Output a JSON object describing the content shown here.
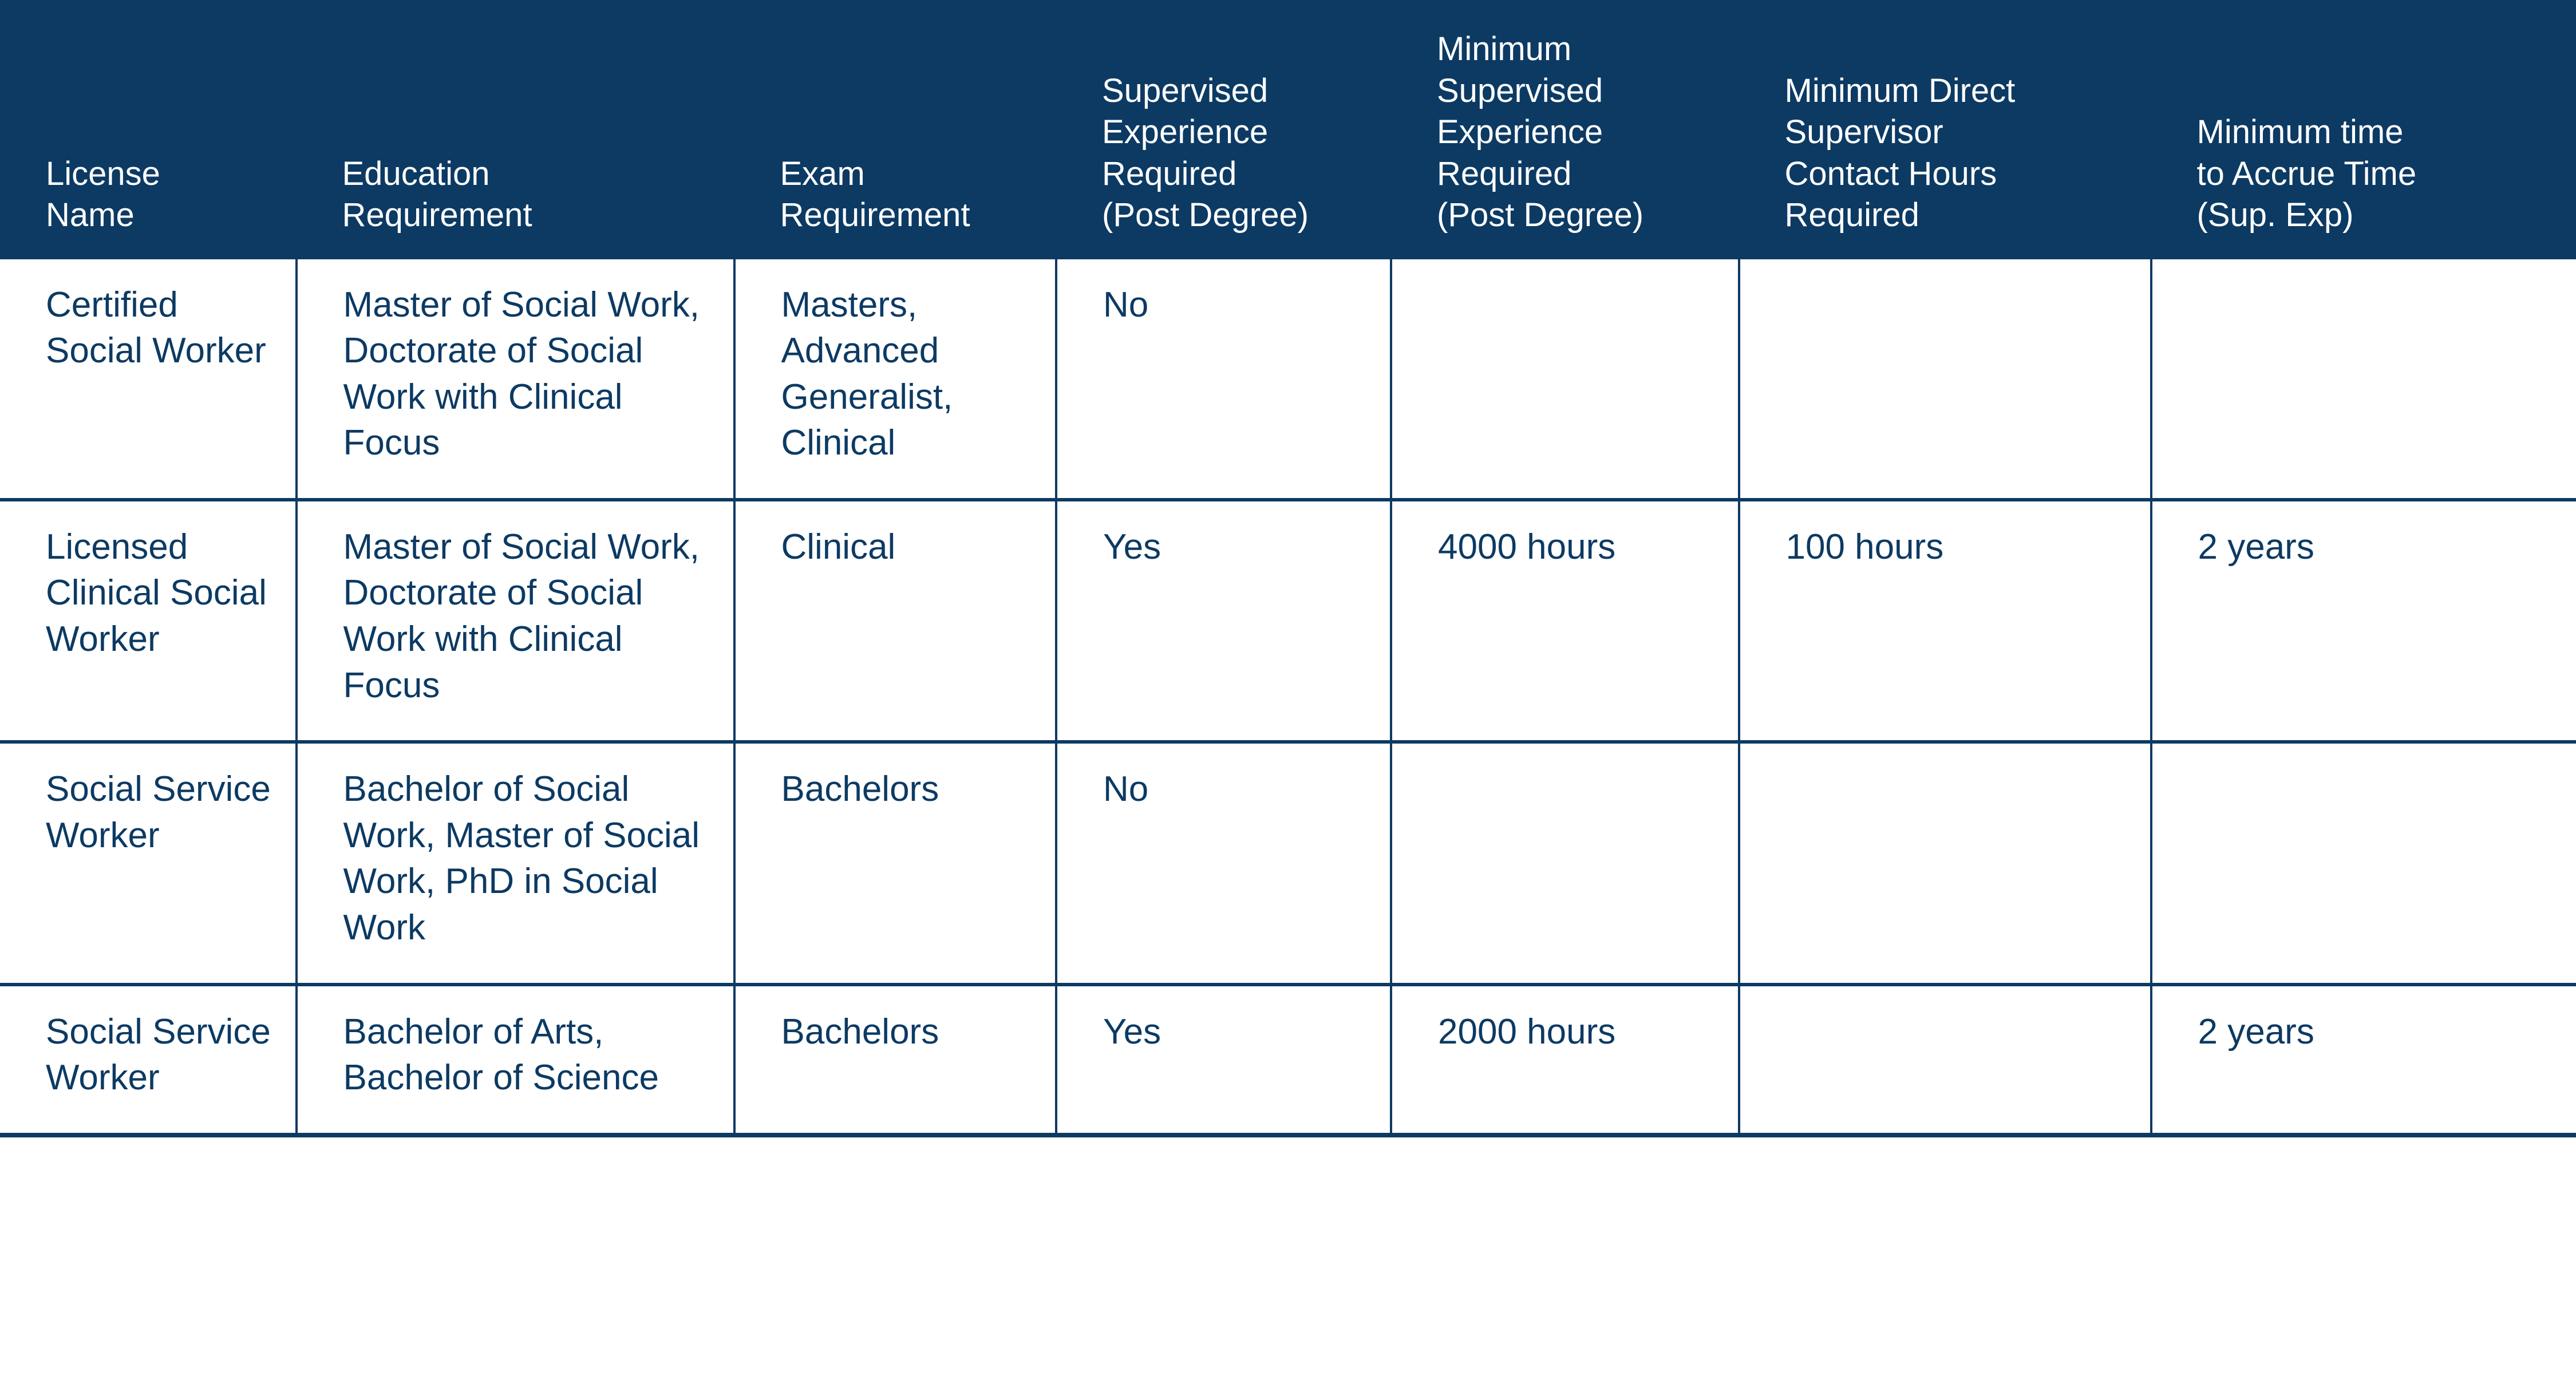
{
  "table": {
    "type": "table",
    "header_bg": "#0c3a63",
    "header_text_color": "#ffffff",
    "body_text_color": "#0c3a63",
    "border_color": "#0c3a63",
    "background_color": "#ffffff",
    "header_fontsize_pt": 18,
    "body_fontsize_pt": 19,
    "columns": [
      {
        "lines": [
          "License",
          "Name"
        ],
        "width_pct": 11.5
      },
      {
        "lines": [
          "Education",
          "Requirement"
        ],
        "width_pct": 17.0
      },
      {
        "lines": [
          "Exam",
          "Requirement"
        ],
        "width_pct": 12.5
      },
      {
        "lines": [
          "Supervised",
          "Experience",
          "Required",
          "(Post Degree)"
        ],
        "width_pct": 13.0
      },
      {
        "lines": [
          "Minimum",
          "Supervised",
          "Experience",
          "Required",
          "(Post Degree)"
        ],
        "width_pct": 13.5
      },
      {
        "lines": [
          "Minimum Direct",
          "Supervisor",
          "Contact Hours",
          "Required"
        ],
        "width_pct": 16.0
      },
      {
        "lines": [
          "Minimum time",
          "to Accrue Time",
          "(Sup. Exp)"
        ],
        "width_pct": 16.5
      }
    ],
    "rows": [
      {
        "license_name": "Certified Social Worker",
        "education_requirement": "Master of Social Work, Doctorate of Social Work with Clinical Focus",
        "exam_requirement": "Masters, Advanced Generalist, Clinical",
        "supervised_experience_required": "No",
        "min_supervised_experience": "",
        "min_direct_supervisor_contact_hours": "",
        "min_time_to_accrue": ""
      },
      {
        "license_name": "Licensed Clinical Social Worker",
        "education_requirement": "Master of Social Work, Doctorate of Social Work with Clinical Focus",
        "exam_requirement": "Clinical",
        "supervised_experience_required": "Yes",
        "min_supervised_experience": "4000 hours",
        "min_direct_supervisor_contact_hours": "100 hours",
        "min_time_to_accrue": "2 years"
      },
      {
        "license_name": "Social Service Worker",
        "education_requirement": "Bachelor of Social Work, Master of Social Work, PhD in Social Work",
        "exam_requirement": "Bachelors",
        "supervised_experience_required": "No",
        "min_supervised_experience": "",
        "min_direct_supervisor_contact_hours": "",
        "min_time_to_accrue": ""
      },
      {
        "license_name": "Social Service Worker",
        "education_requirement": "Bachelor of Arts, Bachelor of Science",
        "exam_requirement": "Bachelors",
        "supervised_experience_required": "Yes",
        "min_supervised_experience": "2000 hours",
        "min_direct_supervisor_contact_hours": "",
        "min_time_to_accrue": "2 years"
      }
    ]
  }
}
